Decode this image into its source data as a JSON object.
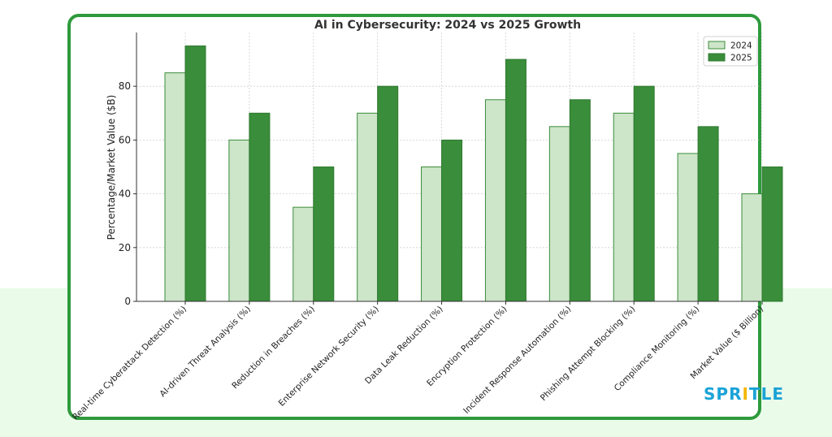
{
  "chart_data": {
    "type": "bar",
    "title": "AI in Cybersecurity: 2024 vs 2025 Growth",
    "xlabel": "",
    "ylabel": "Percentage/Market Value ($B)",
    "ylim": [
      0,
      100
    ],
    "yticks": [
      "0",
      "20",
      "40",
      "60",
      "80"
    ],
    "grid": true,
    "legend_position": "top-right",
    "categories": [
      "Real-time Cyberattack Detection (%)",
      "AI-driven Threat Analysis (%)",
      "Reduction in Breaches (%)",
      "Enterprise Network Security (%)",
      "Data Leak Reduction (%)",
      "Encryption Protection (%)",
      "Incident Response Automation (%)",
      "Phishing Attempt Blocking (%)",
      "Compliance Monitoring (%)",
      "Market Value ($ Billion)"
    ],
    "series": [
      {
        "name": "2024",
        "color": "#cde5c9",
        "stroke": "#3a8d3a",
        "values": [
          85,
          60,
          35,
          70,
          50,
          75,
          65,
          70,
          55,
          40
        ]
      },
      {
        "name": "2025",
        "color": "#3a8d3a",
        "stroke": "#2f7a30",
        "values": [
          95,
          70,
          50,
          80,
          60,
          90,
          75,
          80,
          65,
          50
        ]
      }
    ]
  },
  "branding": {
    "logo_text": "SPRITLE",
    "logo_colors": [
      "#1aa3d6",
      "#1aa3d6",
      "#1aa3d6",
      "#f4b400",
      "#1aa3d6",
      "#1aa3d6",
      "#1aa3d6"
    ],
    "frame_color": "#2e9a3c"
  }
}
